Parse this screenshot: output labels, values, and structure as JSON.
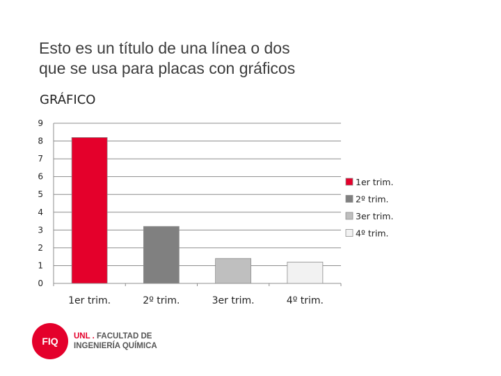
{
  "slide": {
    "title_lines": [
      "Esto es un título de una línea o dos",
      "que se usa para placas con gráficos"
    ],
    "chart_heading": "GRÁFICO"
  },
  "logo": {
    "mark": "FIQ",
    "brand": "UNL",
    "line1": "FACULTAD DE",
    "line2": "INGENIERÍA QUÍMICA",
    "color": "#e4002b"
  },
  "chart_data": {
    "type": "bar",
    "categories": [
      "1er trim.",
      "2º trim.",
      "3er trim.",
      "4º trim."
    ],
    "values": [
      8.2,
      3.2,
      1.4,
      1.2
    ],
    "colors": [
      "#e4002b",
      "#808080",
      "#bfbfbf",
      "#f2f2f2"
    ],
    "legend": [
      "1er trim.",
      "2º trim.",
      "3er trim.",
      "4º trim."
    ],
    "legend_position": "right",
    "yticks": [
      0,
      1,
      2,
      3,
      4,
      5,
      6,
      7,
      8,
      9
    ],
    "ylim": [
      0,
      9
    ],
    "grid": true
  }
}
